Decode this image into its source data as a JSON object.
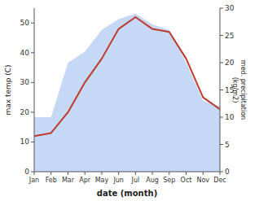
{
  "chart_data": {
    "type": "line",
    "x_label": "date (month)",
    "y_label": "max temp (C)",
    "y2_label": "med. precipitation\n(kg/m2)",
    "categories": [
      "Jan",
      "Feb",
      "Mar",
      "Apr",
      "May",
      "Jun",
      "Jul",
      "Aug",
      "Sep",
      "Oct",
      "Nov",
      "Dec"
    ],
    "series": [
      {
        "type": "area",
        "axis": "y2",
        "color": "#c5d8f5",
        "values": [
          10,
          10,
          20,
          22,
          26,
          28,
          29,
          27,
          26,
          20,
          13,
          12
        ]
      },
      {
        "type": "line",
        "color": "#c0392b",
        "values": [
          12,
          13,
          20,
          30,
          38,
          48,
          52,
          48,
          47,
          38,
          25,
          21
        ]
      }
    ],
    "ylim": [
      0,
      55
    ],
    "yticks": [
      0,
      10,
      20,
      30,
      40,
      50
    ],
    "y2lim": [
      0,
      30
    ],
    "y2ticks": [
      0,
      5,
      10,
      15,
      20,
      25,
      30
    ]
  }
}
